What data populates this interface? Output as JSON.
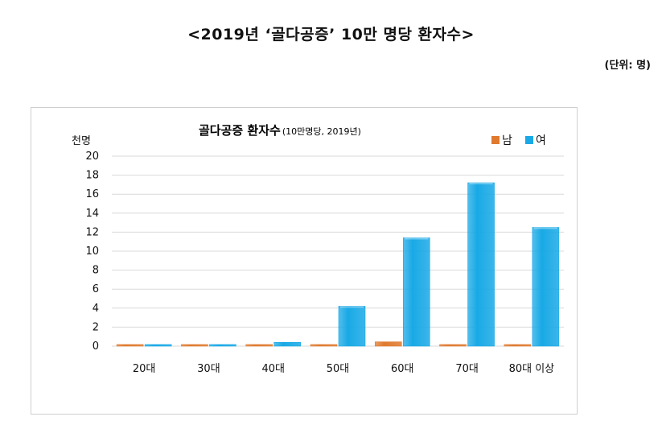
{
  "page": {
    "title": "<2019년 ‘골다공증’ 10만 명당 환자수>",
    "unit_note": "(단위: 명)"
  },
  "colors": {
    "male": "#e07a2e",
    "female": "#19a9e6",
    "grid": "#d9d9d9"
  },
  "chart_data": {
    "type": "bar",
    "title": "골다공증 환자수",
    "subtitle": "(10만명당, 2019년)",
    "ylabel": "천명",
    "xlabel": "",
    "categories": [
      "20대",
      "30대",
      "40대",
      "50대",
      "60대",
      "70대",
      "80대 이상"
    ],
    "ylim": [
      0,
      20
    ],
    "yticks": [
      0,
      2,
      4,
      6,
      8,
      10,
      12,
      14,
      16,
      18,
      20
    ],
    "grid": true,
    "legend_position": "top-right",
    "series": [
      {
        "name": "남",
        "color": "#e07a2e",
        "values": [
          0.02,
          0.03,
          0.05,
          0.15,
          0.45,
          0.05,
          0.05
        ]
      },
      {
        "name": "여",
        "color": "#19a9e6",
        "values": [
          0.02,
          0.1,
          0.4,
          4.2,
          11.4,
          17.2,
          12.5
        ]
      }
    ]
  }
}
